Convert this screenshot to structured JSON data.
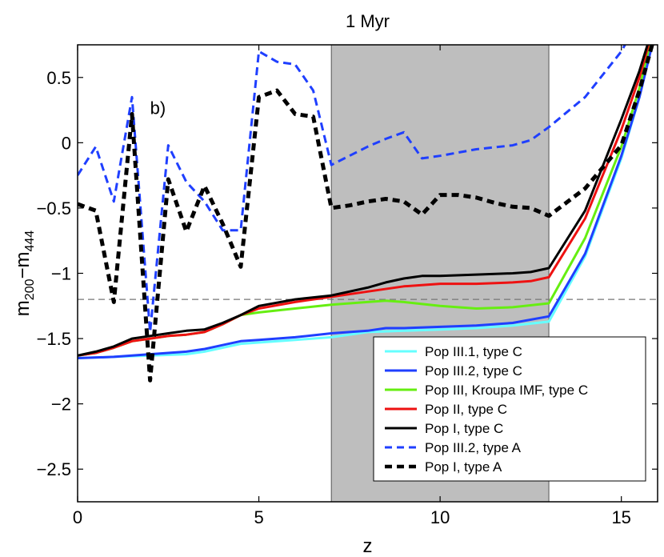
{
  "chart_data": {
    "type": "line",
    "title": "1 Myr",
    "xlabel": "z",
    "ylabel_main": "m",
    "ylabel_sub1": "200",
    "ylabel_dash": "−m",
    "ylabel_sub2": "444",
    "xlim": [
      0,
      16
    ],
    "ylim": [
      -2.75,
      0.75
    ],
    "x_ticks": [
      0,
      5,
      10,
      15
    ],
    "x_tick_labels": [
      "0",
      "5",
      "10",
      "15"
    ],
    "y_ticks": [
      0.5,
      0,
      -0.5,
      -1,
      -1.5,
      -2,
      -2.5
    ],
    "y_tick_labels": [
      "0.5",
      "0",
      "−0.5",
      "−1",
      "−1.5",
      "−2",
      "−2.5"
    ],
    "shaded_region": [
      7,
      13
    ],
    "reference_line_y": -1.2,
    "annotation": "b)",
    "series": [
      {
        "name": "Pop III.1, type C",
        "color": "#66ffff",
        "style": "solid",
        "x": [
          0,
          1,
          2,
          3,
          3.5,
          4,
          4.5,
          5,
          6,
          7,
          8,
          9,
          10,
          11,
          12,
          13,
          14,
          15,
          15.5,
          16
        ],
        "y": [
          -1.65,
          -1.64,
          -1.63,
          -1.62,
          -1.6,
          -1.57,
          -1.54,
          -1.53,
          -1.51,
          -1.49,
          -1.45,
          -1.44,
          -1.43,
          -1.42,
          -1.4,
          -1.37,
          -0.87,
          -0.12,
          0.35,
          0.95
        ]
      },
      {
        "name": "Pop III.2, type C",
        "color": "#1f3fff",
        "style": "solid",
        "x": [
          0,
          1,
          2,
          3,
          3.5,
          4,
          4.5,
          5,
          6,
          7,
          8,
          8.5,
          9,
          10,
          11,
          12,
          13,
          14,
          15,
          15.5,
          16
        ],
        "y": [
          -1.65,
          -1.64,
          -1.62,
          -1.6,
          -1.58,
          -1.55,
          -1.52,
          -1.51,
          -1.49,
          -1.46,
          -1.44,
          -1.42,
          -1.42,
          -1.41,
          -1.4,
          -1.38,
          -1.33,
          -0.85,
          -0.1,
          0.35,
          0.92
        ]
      },
      {
        "name": "Pop III, Kroupa IMF, type C",
        "color": "#66ee11",
        "style": "solid",
        "x": [
          0,
          0.5,
          1,
          1.5,
          2,
          2.5,
          3,
          3.5,
          4,
          4.5,
          5,
          6,
          7,
          8,
          8.5,
          9,
          10,
          11,
          12,
          13,
          14,
          15,
          15.5,
          16
        ],
        "y": [
          -1.63,
          -1.61,
          -1.57,
          -1.52,
          -1.5,
          -1.48,
          -1.47,
          -1.45,
          -1.39,
          -1.32,
          -1.3,
          -1.27,
          -1.24,
          -1.22,
          -1.21,
          -1.22,
          -1.25,
          -1.27,
          -1.26,
          -1.23,
          -0.73,
          -0.03,
          0.42,
          1.0
        ]
      },
      {
        "name": "Pop II, type C",
        "color": "#ee1111",
        "style": "solid",
        "x": [
          0,
          0.5,
          1,
          1.5,
          2,
          2.5,
          3,
          3.5,
          4,
          4.5,
          5,
          6,
          7,
          8,
          9,
          10,
          11,
          12,
          12.5,
          13,
          14,
          15,
          15.5,
          16
        ],
        "y": [
          -1.63,
          -1.61,
          -1.57,
          -1.52,
          -1.5,
          -1.48,
          -1.47,
          -1.45,
          -1.39,
          -1.32,
          -1.27,
          -1.22,
          -1.18,
          -1.14,
          -1.1,
          -1.08,
          -1.08,
          -1.07,
          -1.06,
          -1.03,
          -0.58,
          0.1,
          0.5,
          1.0
        ]
      },
      {
        "name": "Pop I, type C",
        "color": "#000000",
        "style": "solid",
        "x": [
          0,
          0.5,
          1,
          1.5,
          2,
          2.5,
          3,
          3.5,
          4,
          4.5,
          5,
          6,
          7,
          7.5,
          8,
          8.5,
          9,
          9.5,
          10,
          11,
          12,
          12.5,
          13,
          14,
          15,
          15.5,
          16
        ],
        "y": [
          -1.63,
          -1.6,
          -1.56,
          -1.5,
          -1.48,
          -1.46,
          -1.44,
          -1.43,
          -1.38,
          -1.32,
          -1.25,
          -1.2,
          -1.17,
          -1.14,
          -1.11,
          -1.07,
          -1.04,
          -1.02,
          -1.02,
          -1.01,
          -1.0,
          -0.99,
          -0.96,
          -0.52,
          0.18,
          0.55,
          1.0
        ]
      },
      {
        "name": "Pop III.2, type A",
        "color": "#1f3fff",
        "style": "dashed",
        "x": [
          0,
          0.5,
          1,
          1.5,
          2,
          2.5,
          3,
          3.5,
          4,
          4.5,
          5,
          5.5,
          6,
          6.5,
          7,
          8,
          8.5,
          9,
          9.5,
          10,
          11,
          12,
          12.5,
          13,
          14,
          15,
          15.5,
          16
        ],
        "y": [
          -0.25,
          -0.03,
          -0.45,
          0.35,
          -1.45,
          -0.02,
          -0.3,
          -0.45,
          -0.67,
          -0.67,
          0.7,
          0.62,
          0.6,
          0.4,
          -0.17,
          -0.03,
          0.03,
          0.08,
          -0.12,
          -0.1,
          -0.05,
          -0.02,
          0.02,
          0.12,
          0.35,
          0.7,
          0.95,
          1.3
        ]
      },
      {
        "name": "Pop I, type A",
        "color": "#000000",
        "style": "dashed",
        "x": [
          0,
          0.5,
          1,
          1.5,
          2,
          2.5,
          3,
          3.5,
          4,
          4.5,
          5,
          5.5,
          6,
          6.5,
          7,
          7.5,
          8,
          8.5,
          9,
          9.5,
          10,
          10.5,
          11,
          11.5,
          12,
          12.5,
          13,
          14,
          15,
          15.5,
          16
        ],
        "y": [
          -0.47,
          -0.52,
          -1.22,
          0.22,
          -1.82,
          -0.28,
          -0.68,
          -0.33,
          -0.62,
          -0.95,
          0.35,
          0.4,
          0.22,
          0.2,
          -0.5,
          -0.48,
          -0.45,
          -0.43,
          -0.45,
          -0.55,
          -0.4,
          -0.4,
          -0.42,
          -0.46,
          -0.49,
          -0.5,
          -0.56,
          -0.35,
          -0.02,
          0.4,
          0.9
        ]
      }
    ]
  }
}
